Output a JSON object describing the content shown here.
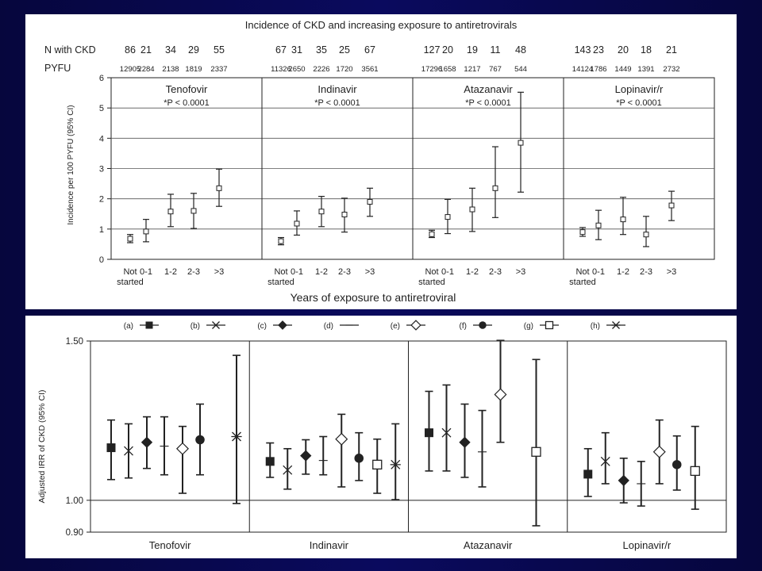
{
  "colors": {
    "background": "#0a0a5e",
    "panel": "#ffffff",
    "ink": "#222222"
  },
  "top_chart": {
    "title": "Incidence of CKD and increasing exposure to antiretrovirals",
    "n_label": "N with CKD",
    "pyfu_label": "PYFU",
    "ylabel": "Incidence per 100 PYFU (95% CI)",
    "xlabel": "Years of exposure to antiretroviral"
  },
  "bottom_chart": {
    "ylabel": "Adjusted IRR of CKD  (95% CI)"
  },
  "chart_data": [
    {
      "type": "scatter",
      "title": "Incidence of CKD and increasing exposure to antiretrovirals",
      "ylabel": "Incidence per 100 PYFU (95% CI)",
      "xlabel": "Years of exposure to antiretroviral",
      "ylim": [
        0,
        6
      ],
      "yticks": [
        "0",
        "1",
        "2",
        "3",
        "4",
        "5",
        "6"
      ],
      "categories": [
        "Not started",
        "0-1",
        "1-2",
        "2-3",
        ">3"
      ],
      "category_labels": [
        {
          "line1": "Not",
          "line2": "started"
        },
        {
          "line1": "0-1",
          "line2": ""
        },
        {
          "line1": "1-2",
          "line2": ""
        },
        {
          "line1": "2-3",
          "line2": ""
        },
        {
          "line1": ">3",
          "line2": ""
        }
      ],
      "grid": true,
      "panels": [
        {
          "drug": "Tenofovir",
          "p_text": "*P < 0.0001",
          "n": [
            "86",
            "21",
            "34",
            "29",
            "55"
          ],
          "pyfu": [
            "12905",
            "2284",
            "2138",
            "1819",
            "2337"
          ],
          "points": [
            {
              "y": 0.68,
              "lo": 0.55,
              "hi": 0.82
            },
            {
              "y": 0.92,
              "lo": 0.58,
              "hi": 1.32
            },
            {
              "y": 1.58,
              "lo": 1.08,
              "hi": 2.15
            },
            {
              "y": 1.6,
              "lo": 1.02,
              "hi": 2.18
            },
            {
              "y": 2.35,
              "lo": 1.75,
              "hi": 2.98
            }
          ]
        },
        {
          "drug": "Indinavir",
          "p_text": "*P < 0.0001",
          "n": [
            "67",
            "31",
            "35",
            "25",
            "67"
          ],
          "pyfu": [
            "11326",
            "2650",
            "2226",
            "1720",
            "3561"
          ],
          "points": [
            {
              "y": 0.6,
              "lo": 0.48,
              "hi": 0.72
            },
            {
              "y": 1.18,
              "lo": 0.8,
              "hi": 1.6
            },
            {
              "y": 1.58,
              "lo": 1.08,
              "hi": 2.08
            },
            {
              "y": 1.48,
              "lo": 0.9,
              "hi": 2.02
            },
            {
              "y": 1.9,
              "lo": 1.42,
              "hi": 2.35
            }
          ]
        },
        {
          "drug": "Atazanavir",
          "p_text": "*P < 0.0001",
          "n": [
            "127",
            "20",
            "19",
            "11",
            "48"
          ],
          "pyfu": [
            "17296",
            "1658",
            "1217",
            "767",
            "544"
          ],
          "points": [
            {
              "y": 0.83,
              "lo": 0.72,
              "hi": 0.96
            },
            {
              "y": 1.4,
              "lo": 0.85,
              "hi": 1.98
            },
            {
              "y": 1.65,
              "lo": 0.92,
              "hi": 2.35
            },
            {
              "y": 2.35,
              "lo": 1.38,
              "hi": 3.72
            },
            {
              "y": 3.85,
              "lo": 2.22,
              "hi": 5.52
            }
          ]
        },
        {
          "drug": "Lopinavir/r",
          "p_text": "*P < 0.0001",
          "n": [
            "143",
            "23",
            "20",
            "18",
            "21"
          ],
          "pyfu": [
            "14124",
            "1786",
            "1449",
            "1391",
            "2732"
          ],
          "points": [
            {
              "y": 0.9,
              "lo": 0.76,
              "hi": 1.05
            },
            {
              "y": 1.12,
              "lo": 0.65,
              "hi": 1.62
            },
            {
              "y": 1.32,
              "lo": 0.82,
              "hi": 2.05
            },
            {
              "y": 0.82,
              "lo": 0.42,
              "hi": 1.42
            },
            {
              "y": 1.78,
              "lo": 1.28,
              "hi": 2.25
            }
          ]
        }
      ]
    },
    {
      "type": "scatter",
      "ylabel": "Adjusted IRR of CKD  (95% CI)",
      "ylim": [
        0.9,
        1.5
      ],
      "yticks": [
        {
          "value": 0.9,
          "label": "0.90"
        },
        {
          "value": 1.0,
          "label": "1.00"
        },
        {
          "value": 1.5,
          "label": "1.50"
        }
      ],
      "reference_line": 1.0,
      "legend": [
        {
          "label": "(a)",
          "marker": "filled-square"
        },
        {
          "label": "(b)",
          "marker": "x"
        },
        {
          "label": "(c)",
          "marker": "filled-diamond"
        },
        {
          "label": "(d)",
          "marker": "plus"
        },
        {
          "label": "(e)",
          "marker": "open-diamond"
        },
        {
          "label": "(f)",
          "marker": "filled-circle"
        },
        {
          "label": "(g)",
          "marker": "open-square"
        },
        {
          "label": "(h)",
          "marker": "asterisk"
        }
      ],
      "legend_position": "top",
      "panels": [
        {
          "drug": "Tenofovir",
          "points": [
            {
              "series": "(a)",
              "y": 1.165,
              "lo": 1.065,
              "hi": 1.252
            },
            {
              "series": "(b)",
              "y": 1.155,
              "lo": 1.07,
              "hi": 1.24
            },
            {
              "series": "(c)",
              "y": 1.182,
              "lo": 1.1,
              "hi": 1.262
            },
            {
              "series": "(d)",
              "y": 1.17,
              "lo": 1.08,
              "hi": 1.262
            },
            {
              "series": "(e)",
              "y": 1.162,
              "lo": 1.022,
              "hi": 1.232
            },
            {
              "series": "(f)",
              "y": 1.19,
              "lo": 1.08,
              "hi": 1.302
            },
            {
              "series": "(h)",
              "y": 1.2,
              "lo": 0.99,
              "hi": 1.455
            }
          ]
        },
        {
          "drug": "Indinavir",
          "points": [
            {
              "series": "(a)",
              "y": 1.122,
              "lo": 1.072,
              "hi": 1.18
            },
            {
              "series": "(b)",
              "y": 1.095,
              "lo": 1.035,
              "hi": 1.162
            },
            {
              "series": "(c)",
              "y": 1.14,
              "lo": 1.082,
              "hi": 1.19
            },
            {
              "series": "(d)",
              "y": 1.125,
              "lo": 1.08,
              "hi": 1.2
            },
            {
              "series": "(e)",
              "y": 1.192,
              "lo": 1.042,
              "hi": 1.27
            },
            {
              "series": "(f)",
              "y": 1.132,
              "lo": 1.062,
              "hi": 1.212
            },
            {
              "series": "(g)",
              "y": 1.112,
              "lo": 1.022,
              "hi": 1.192
            },
            {
              "series": "(h)",
              "y": 1.112,
              "lo": 1.002,
              "hi": 1.24
            }
          ]
        },
        {
          "drug": "Atazanavir",
          "points": [
            {
              "series": "(a)",
              "y": 1.212,
              "lo": 1.092,
              "hi": 1.342
            },
            {
              "series": "(b)",
              "y": 1.212,
              "lo": 1.092,
              "hi": 1.362
            },
            {
              "series": "(c)",
              "y": 1.182,
              "lo": 1.072,
              "hi": 1.302
            },
            {
              "series": "(d)",
              "y": 1.152,
              "lo": 1.042,
              "hi": 1.282
            },
            {
              "series": "(e)",
              "y": 1.332,
              "lo": 1.182,
              "hi": 1.502
            },
            {
              "series": "(g)",
              "y": 1.152,
              "lo": 0.92,
              "hi": 1.442
            }
          ]
        },
        {
          "drug": "Lopinavir/r",
          "points": [
            {
              "series": "(a)",
              "y": 1.082,
              "lo": 1.012,
              "hi": 1.162
            },
            {
              "series": "(b)",
              "y": 1.122,
              "lo": 1.052,
              "hi": 1.212
            },
            {
              "series": "(c)",
              "y": 1.062,
              "lo": 0.992,
              "hi": 1.132
            },
            {
              "series": "(d)",
              "y": 1.052,
              "lo": 0.982,
              "hi": 1.122
            },
            {
              "series": "(e)",
              "y": 1.152,
              "lo": 1.052,
              "hi": 1.252
            },
            {
              "series": "(f)",
              "y": 1.112,
              "lo": 1.032,
              "hi": 1.202
            },
            {
              "series": "(g)",
              "y": 1.092,
              "lo": 0.972,
              "hi": 1.232
            }
          ]
        }
      ]
    }
  ]
}
